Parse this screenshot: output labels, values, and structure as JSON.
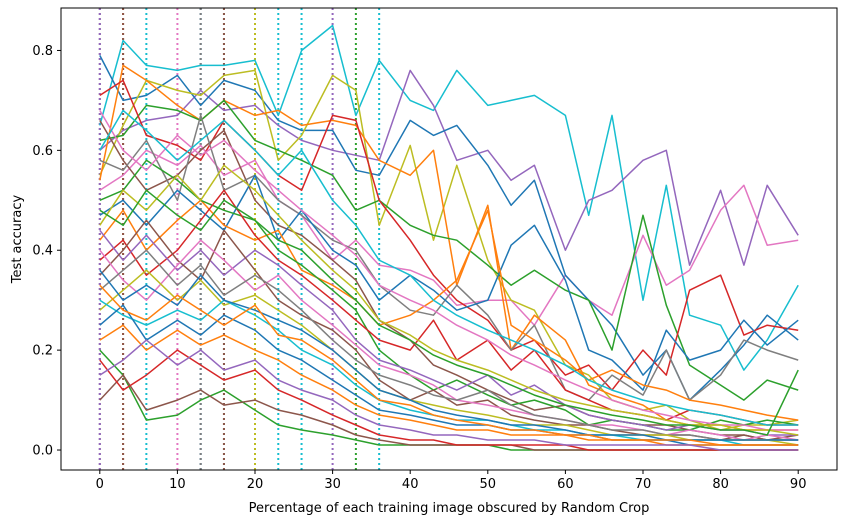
{
  "chart_data": {
    "type": "line",
    "title": "",
    "xlabel": "Percentage of each training image obscured by Random Crop",
    "ylabel": "Test accuracy",
    "xlim": [
      -5,
      95
    ],
    "ylim": [
      -0.04,
      0.885
    ],
    "xticks": [
      0,
      10,
      20,
      30,
      40,
      50,
      60,
      70,
      80,
      90
    ],
    "yticks": [
      0.0,
      0.2,
      0.4,
      0.6,
      0.8
    ],
    "grid": false,
    "legend": "none",
    "colors": [
      "#1f77b4",
      "#ff7f0e",
      "#2ca02c",
      "#d62728",
      "#9467bd",
      "#8c564b",
      "#e377c2",
      "#7f7f7f",
      "#bcbd22",
      "#17becf"
    ],
    "x": [
      0,
      3,
      6,
      10,
      13,
      16,
      20,
      23,
      26,
      30,
      33,
      36,
      40,
      43,
      46,
      50,
      53,
      56,
      60,
      63,
      66,
      70,
      73,
      76,
      80,
      83,
      86,
      90
    ],
    "vertical_lines": [
      {
        "x": 0,
        "color": "#7f7f7f"
      },
      {
        "x": 0,
        "color": "#9467bd"
      },
      {
        "x": 3,
        "color": "#ff7f0e"
      },
      {
        "x": 3,
        "color": "#8c564b"
      },
      {
        "x": 6,
        "color": "#17becf"
      },
      {
        "x": 10,
        "color": "#e377c2"
      },
      {
        "x": 13,
        "color": "#1f77b4"
      },
      {
        "x": 13,
        "color": "#7f7f7f"
      },
      {
        "x": 16,
        "color": "#2ca02c"
      },
      {
        "x": 16,
        "color": "#8c564b"
      },
      {
        "x": 20,
        "color": "#bcbd22"
      },
      {
        "x": 23,
        "color": "#17becf"
      },
      {
        "x": 26,
        "color": "#17becf"
      },
      {
        "x": 30,
        "color": "#9467bd"
      },
      {
        "x": 33,
        "color": "#2ca02c"
      },
      {
        "x": 36,
        "color": "#17becf"
      }
    ],
    "series": [
      {
        "color": "#17becf",
        "values": [
          0.65,
          0.82,
          0.77,
          0.76,
          0.77,
          0.77,
          0.78,
          0.67,
          0.8,
          0.85,
          0.67,
          0.78,
          0.7,
          0.68,
          0.76,
          0.69,
          0.7,
          0.71,
          0.67,
          0.47,
          0.67,
          0.3,
          0.53,
          0.27,
          0.25,
          0.16,
          0.22,
          0.33
        ]
      },
      {
        "color": "#9467bd",
        "values": [
          0.6,
          0.64,
          0.66,
          0.67,
          0.72,
          0.68,
          0.69,
          0.65,
          0.62,
          0.6,
          0.59,
          0.58,
          0.76,
          0.69,
          0.58,
          0.6,
          0.54,
          0.57,
          0.4,
          0.5,
          0.52,
          0.58,
          0.6,
          0.37,
          0.52,
          0.37,
          0.53,
          0.43
        ]
      },
      {
        "color": "#e377c2",
        "values": [
          0.52,
          0.55,
          0.6,
          0.57,
          0.61,
          0.55,
          0.58,
          0.5,
          0.47,
          0.38,
          0.42,
          0.37,
          0.36,
          0.34,
          0.29,
          0.3,
          0.3,
          0.25,
          0.35,
          0.3,
          0.27,
          0.43,
          0.33,
          0.36,
          0.48,
          0.53,
          0.41,
          0.42
        ]
      },
      {
        "color": "#1f77b4",
        "values": [
          0.79,
          0.7,
          0.71,
          0.75,
          0.69,
          0.74,
          0.72,
          0.66,
          0.64,
          0.64,
          0.56,
          0.55,
          0.66,
          0.63,
          0.65,
          0.57,
          0.49,
          0.54,
          0.35,
          0.3,
          0.25,
          0.15,
          0.2,
          0.1,
          0.16,
          0.21,
          0.27,
          0.22
        ]
      },
      {
        "color": "#bcbd22",
        "values": [
          0.55,
          0.65,
          0.74,
          0.72,
          0.71,
          0.75,
          0.76,
          0.58,
          0.63,
          0.75,
          0.72,
          0.45,
          0.61,
          0.42,
          0.57,
          0.38,
          0.3,
          0.28,
          0.17,
          0.15,
          0.1,
          0.08,
          0.09,
          0.06,
          0.04,
          0.05,
          0.05,
          0.06
        ]
      },
      {
        "color": "#ff7f0e",
        "values": [
          0.54,
          0.77,
          0.74,
          0.69,
          0.66,
          0.7,
          0.67,
          0.68,
          0.65,
          0.66,
          0.65,
          0.58,
          0.55,
          0.6,
          0.33,
          0.49,
          0.2,
          0.27,
          0.22,
          0.13,
          0.11,
          0.09,
          0.06,
          0.05,
          0.05,
          0.04,
          0.04,
          0.04
        ]
      },
      {
        "color": "#2ca02c",
        "values": [
          0.62,
          0.63,
          0.69,
          0.68,
          0.66,
          0.7,
          0.62,
          0.6,
          0.58,
          0.55,
          0.48,
          0.5,
          0.45,
          0.43,
          0.42,
          0.37,
          0.33,
          0.36,
          0.32,
          0.3,
          0.2,
          0.47,
          0.29,
          0.17,
          0.13,
          0.1,
          0.14,
          0.12
        ]
      },
      {
        "color": "#d62728",
        "values": [
          0.71,
          0.74,
          0.63,
          0.61,
          0.58,
          0.66,
          0.6,
          0.55,
          0.52,
          0.67,
          0.66,
          0.5,
          0.42,
          0.35,
          0.3,
          0.26,
          0.2,
          0.22,
          0.15,
          0.17,
          0.12,
          0.2,
          0.15,
          0.32,
          0.35,
          0.23,
          0.25,
          0.24
        ]
      },
      {
        "color": "#8c564b",
        "values": [
          0.66,
          0.58,
          0.52,
          0.55,
          0.6,
          0.64,
          0.5,
          0.45,
          0.43,
          0.38,
          0.34,
          0.26,
          0.22,
          0.17,
          0.15,
          0.12,
          0.1,
          0.08,
          0.09,
          0.07,
          0.06,
          0.05,
          0.05,
          0.04,
          0.03,
          0.03,
          0.02,
          0.03
        ]
      },
      {
        "color": "#7f7f7f",
        "values": [
          0.58,
          0.56,
          0.62,
          0.5,
          0.67,
          0.52,
          0.55,
          0.5,
          0.47,
          0.42,
          0.4,
          0.33,
          0.28,
          0.27,
          0.33,
          0.27,
          0.2,
          0.25,
          0.12,
          0.1,
          0.15,
          0.11,
          0.2,
          0.1,
          0.15,
          0.22,
          0.2,
          0.18
        ]
      },
      {
        "color": "#1f77b4",
        "values": [
          0.47,
          0.5,
          0.45,
          0.52,
          0.48,
          0.44,
          0.55,
          0.42,
          0.48,
          0.4,
          0.37,
          0.3,
          0.35,
          0.32,
          0.28,
          0.3,
          0.41,
          0.45,
          0.34,
          0.2,
          0.18,
          0.12,
          0.24,
          0.18,
          0.2,
          0.26,
          0.21,
          0.26
        ]
      },
      {
        "color": "#ff7f0e",
        "values": [
          0.42,
          0.48,
          0.4,
          0.46,
          0.5,
          0.45,
          0.42,
          0.44,
          0.36,
          0.33,
          0.3,
          0.25,
          0.27,
          0.3,
          0.34,
          0.48,
          0.25,
          0.22,
          0.18,
          0.14,
          0.16,
          0.13,
          0.12,
          0.1,
          0.09,
          0.08,
          0.07,
          0.06
        ]
      },
      {
        "color": "#2ca02c",
        "values": [
          0.5,
          0.52,
          0.58,
          0.54,
          0.5,
          0.48,
          0.46,
          0.4,
          0.37,
          0.32,
          0.28,
          0.2,
          0.15,
          0.12,
          0.14,
          0.11,
          0.09,
          0.1,
          0.08,
          0.05,
          0.06,
          0.05,
          0.04,
          0.04,
          0.06,
          0.05,
          0.06,
          0.05
        ]
      },
      {
        "color": "#d62728",
        "values": [
          0.38,
          0.42,
          0.35,
          0.4,
          0.46,
          0.52,
          0.43,
          0.38,
          0.35,
          0.3,
          0.26,
          0.22,
          0.2,
          0.26,
          0.18,
          0.22,
          0.16,
          0.2,
          0.12,
          0.1,
          0.08,
          0.07,
          0.06,
          0.08,
          0.07,
          0.06,
          0.05,
          0.05
        ]
      },
      {
        "color": "#9467bd",
        "values": [
          0.44,
          0.38,
          0.43,
          0.36,
          0.4,
          0.35,
          0.4,
          0.37,
          0.33,
          0.28,
          0.22,
          0.18,
          0.16,
          0.14,
          0.12,
          0.15,
          0.11,
          0.13,
          0.09,
          0.07,
          0.06,
          0.05,
          0.04,
          0.05,
          0.04,
          0.04,
          0.03,
          0.03
        ]
      },
      {
        "color": "#8c564b",
        "values": [
          0.35,
          0.4,
          0.46,
          0.38,
          0.34,
          0.44,
          0.36,
          0.3,
          0.27,
          0.24,
          0.2,
          0.14,
          0.1,
          0.12,
          0.09,
          0.1,
          0.07,
          0.06,
          0.05,
          0.05,
          0.04,
          0.03,
          0.03,
          0.03,
          0.02,
          0.03,
          0.02,
          0.02
        ]
      },
      {
        "color": "#e377c2",
        "values": [
          0.4,
          0.34,
          0.3,
          0.37,
          0.42,
          0.38,
          0.32,
          0.35,
          0.3,
          0.25,
          0.21,
          0.17,
          0.15,
          0.13,
          0.1,
          0.09,
          0.08,
          0.07,
          0.06,
          0.05,
          0.05,
          0.04,
          0.03,
          0.04,
          0.03,
          0.02,
          0.03,
          0.02
        ]
      },
      {
        "color": "#7f7f7f",
        "values": [
          0.32,
          0.36,
          0.4,
          0.33,
          0.37,
          0.31,
          0.35,
          0.32,
          0.28,
          0.22,
          0.18,
          0.15,
          0.13,
          0.11,
          0.1,
          0.12,
          0.09,
          0.07,
          0.06,
          0.05,
          0.04,
          0.04,
          0.03,
          0.03,
          0.02,
          0.02,
          0.02,
          0.02
        ]
      },
      {
        "color": "#bcbd22",
        "values": [
          0.28,
          0.32,
          0.36,
          0.3,
          0.34,
          0.29,
          0.31,
          0.28,
          0.25,
          0.2,
          0.16,
          0.12,
          0.1,
          0.09,
          0.08,
          0.07,
          0.06,
          0.05,
          0.05,
          0.04,
          0.03,
          0.03,
          0.03,
          0.02,
          0.02,
          0.02,
          0.02,
          0.01
        ]
      },
      {
        "color": "#17becf",
        "values": [
          0.3,
          0.27,
          0.25,
          0.28,
          0.26,
          0.3,
          0.27,
          0.24,
          0.2,
          0.17,
          0.13,
          0.1,
          0.08,
          0.07,
          0.06,
          0.06,
          0.05,
          0.04,
          0.04,
          0.03,
          0.03,
          0.02,
          0.02,
          0.02,
          0.02,
          0.01,
          0.01,
          0.01
        ]
      },
      {
        "color": "#1f77b4",
        "values": [
          0.25,
          0.29,
          0.22,
          0.26,
          0.23,
          0.27,
          0.24,
          0.2,
          0.18,
          0.14,
          0.11,
          0.08,
          0.07,
          0.06,
          0.05,
          0.05,
          0.04,
          0.04,
          0.03,
          0.03,
          0.02,
          0.02,
          0.02,
          0.01,
          0.01,
          0.01,
          0.01,
          0.01
        ]
      },
      {
        "color": "#ff7f0e",
        "values": [
          0.22,
          0.25,
          0.2,
          0.24,
          0.21,
          0.23,
          0.2,
          0.18,
          0.15,
          0.12,
          0.09,
          0.07,
          0.06,
          0.05,
          0.04,
          0.04,
          0.03,
          0.03,
          0.03,
          0.02,
          0.02,
          0.02,
          0.01,
          0.01,
          0.01,
          0.01,
          0.01,
          0.01
        ]
      },
      {
        "color": "#2ca02c",
        "values": [
          0.2,
          0.15,
          0.06,
          0.07,
          0.1,
          0.12,
          0.08,
          0.05,
          0.04,
          0.03,
          0.02,
          0.01,
          0.01,
          0.01,
          0.01,
          0.01,
          0.0,
          0.0,
          0.0,
          0.0,
          0.0,
          0.0,
          0.0,
          0.0,
          0.0,
          0.0,
          0.0,
          0.0
        ]
      },
      {
        "color": "#8c564b",
        "values": [
          0.1,
          0.15,
          0.08,
          0.1,
          0.12,
          0.09,
          0.1,
          0.08,
          0.07,
          0.05,
          0.03,
          0.02,
          0.01,
          0.01,
          0.01,
          0.01,
          0.01,
          0.0,
          0.0,
          0.0,
          0.0,
          0.0,
          0.0,
          0.0,
          0.0,
          0.0,
          0.0,
          0.0
        ]
      },
      {
        "color": "#d62728",
        "values": [
          0.18,
          0.12,
          0.15,
          0.2,
          0.17,
          0.14,
          0.16,
          0.12,
          0.1,
          0.07,
          0.05,
          0.03,
          0.02,
          0.02,
          0.01,
          0.01,
          0.01,
          0.01,
          0.01,
          0.0,
          0.0,
          0.0,
          0.0,
          0.0,
          0.0,
          0.0,
          0.0,
          0.0
        ]
      },
      {
        "color": "#9467bd",
        "values": [
          0.15,
          0.18,
          0.22,
          0.17,
          0.2,
          0.16,
          0.18,
          0.14,
          0.12,
          0.1,
          0.07,
          0.05,
          0.04,
          0.03,
          0.03,
          0.02,
          0.02,
          0.02,
          0.01,
          0.01,
          0.01,
          0.01,
          0.01,
          0.01,
          0.0,
          0.0,
          0.0,
          0.0
        ]
      },
      {
        "color": "#e377c2",
        "values": [
          0.68,
          0.6,
          0.56,
          0.63,
          0.59,
          0.62,
          0.56,
          0.52,
          0.48,
          0.43,
          0.39,
          0.33,
          0.3,
          0.28,
          0.25,
          0.22,
          0.19,
          0.17,
          0.14,
          0.12,
          0.1,
          0.08,
          0.07,
          0.06,
          0.05,
          0.05,
          0.04,
          0.04
        ]
      },
      {
        "color": "#17becf",
        "values": [
          0.6,
          0.68,
          0.64,
          0.58,
          0.62,
          0.66,
          0.6,
          0.55,
          0.6,
          0.5,
          0.45,
          0.38,
          0.35,
          0.3,
          0.27,
          0.24,
          0.22,
          0.2,
          0.17,
          0.14,
          0.12,
          0.1,
          0.09,
          0.08,
          0.07,
          0.06,
          0.05,
          0.05
        ]
      },
      {
        "color": "#bcbd22",
        "values": [
          0.45,
          0.52,
          0.48,
          0.55,
          0.5,
          0.57,
          0.52,
          0.47,
          0.42,
          0.36,
          0.32,
          0.26,
          0.23,
          0.2,
          0.18,
          0.16,
          0.14,
          0.12,
          0.1,
          0.09,
          0.08,
          0.07,
          0.06,
          0.05,
          0.05,
          0.04,
          0.04,
          0.03
        ]
      },
      {
        "color": "#2ca02c",
        "values": [
          0.48,
          0.45,
          0.52,
          0.47,
          0.44,
          0.5,
          0.46,
          0.42,
          0.4,
          0.34,
          0.3,
          0.25,
          0.22,
          0.19,
          0.17,
          0.15,
          0.13,
          0.11,
          0.09,
          0.08,
          0.07,
          0.06,
          0.05,
          0.05,
          0.04,
          0.04,
          0.03,
          0.16
        ]
      },
      {
        "color": "#1f77b4",
        "values": [
          0.36,
          0.3,
          0.33,
          0.29,
          0.35,
          0.3,
          0.28,
          0.26,
          0.24,
          0.2,
          0.16,
          0.12,
          0.1,
          0.08,
          0.07,
          0.06,
          0.05,
          0.05,
          0.04,
          0.03,
          0.03,
          0.03,
          0.02,
          0.02,
          0.02,
          0.02,
          0.02,
          0.02
        ]
      },
      {
        "color": "#ff7f0e",
        "values": [
          0.33,
          0.28,
          0.26,
          0.31,
          0.28,
          0.25,
          0.29,
          0.23,
          0.22,
          0.18,
          0.14,
          0.1,
          0.09,
          0.07,
          0.06,
          0.05,
          0.04,
          0.04,
          0.03,
          0.03,
          0.02,
          0.02,
          0.02,
          0.02,
          0.01,
          0.01,
          0.01,
          0.01
        ]
      }
    ]
  }
}
